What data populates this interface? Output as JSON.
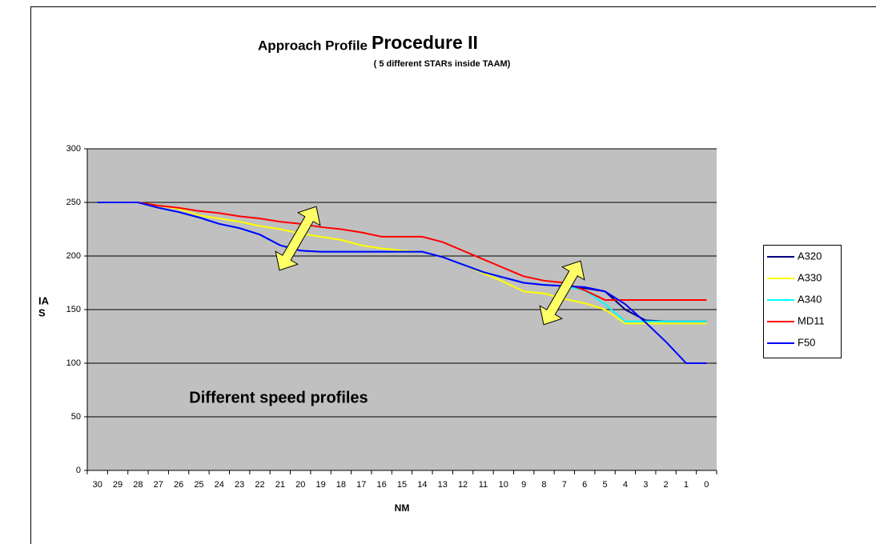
{
  "chart_data": {
    "type": "line",
    "title": "Approach Profile",
    "title_emphasis": "Procedure II",
    "subtitle": "( 5 different STARs inside TAAM)",
    "annotation": "Different speed profiles",
    "x_label": "NM",
    "y_label_lines": [
      "IA",
      "S"
    ],
    "categories": [
      30,
      29,
      28,
      27,
      26,
      25,
      24,
      23,
      22,
      21,
      20,
      19,
      18,
      17,
      16,
      15,
      14,
      13,
      12,
      11,
      10,
      9,
      8,
      7,
      6,
      5,
      4,
      3,
      2,
      1,
      0
    ],
    "series": [
      {
        "name": "A320",
        "color": "#000080",
        "values": [
          250,
          250,
          250,
          245,
          241,
          236,
          230,
          226,
          220,
          210,
          205,
          204,
          204,
          204,
          204,
          204,
          204,
          199,
          192,
          185,
          180,
          175,
          173,
          172,
          170,
          167,
          150,
          140,
          139,
          139,
          139
        ]
      },
      {
        "name": "A330",
        "color": "#ffff00",
        "values": [
          250,
          250,
          250,
          247,
          244,
          238,
          235,
          232,
          228,
          225,
          221,
          218,
          215,
          210,
          207,
          205,
          204,
          199,
          192,
          184,
          176,
          167,
          165,
          160,
          156,
          150,
          137,
          137,
          137,
          137,
          137
        ]
      },
      {
        "name": "A340",
        "color": "#00ffff",
        "values": [
          250,
          250,
          250,
          245,
          241,
          236,
          230,
          226,
          220,
          210,
          205,
          204,
          204,
          204,
          204,
          204,
          204,
          199,
          192,
          185,
          180,
          175,
          173,
          172,
          168,
          155,
          139,
          139,
          139,
          139,
          139
        ]
      },
      {
        "name": "MD11",
        "color": "#ff0000",
        "values": [
          250,
          250,
          250,
          247,
          245,
          242,
          240,
          237,
          235,
          232,
          230,
          227,
          225,
          222,
          218,
          218,
          218,
          213,
          205,
          197,
          189,
          181,
          177,
          175,
          168,
          159,
          159,
          159,
          159,
          159,
          159
        ]
      },
      {
        "name": "F50",
        "color": "#0000ff",
        "values": [
          250,
          250,
          250,
          245,
          241,
          236,
          230,
          226,
          220,
          210,
          205,
          204,
          204,
          204,
          204,
          204,
          204,
          199,
          192,
          185,
          180,
          175,
          173,
          172,
          171,
          167,
          155,
          138,
          120,
          100,
          100
        ]
      }
    ],
    "ylim": [
      0,
      300
    ],
    "yticks": [
      0,
      50,
      100,
      150,
      200,
      250,
      300
    ],
    "grid": true,
    "legend": "right"
  }
}
